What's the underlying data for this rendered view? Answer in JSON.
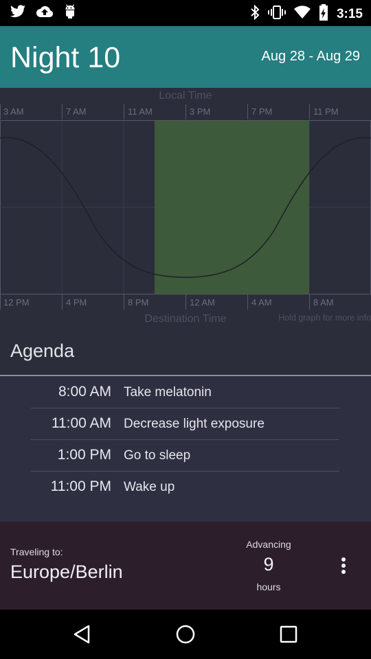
{
  "status_bar": {
    "time": "3:15",
    "left_icons": [
      "twitter-icon",
      "cloud-upload-icon",
      "android-icon"
    ],
    "right_icons": [
      "bluetooth-icon",
      "vibrate-icon",
      "wifi-icon",
      "battery-charging-icon"
    ]
  },
  "header": {
    "title": "Night 10",
    "date_range": "Aug 28 - Aug 29",
    "color": "#257e80"
  },
  "graph": {
    "top_axis_title": "Local Time",
    "top_ticks": [
      "3 AM",
      "7 AM",
      "11 AM",
      "3 PM",
      "7 PM",
      "11 PM"
    ],
    "bottom_ticks": [
      "12 PM",
      "4 PM",
      "8 PM",
      "12 AM",
      "4 AM",
      "8 AM"
    ],
    "bottom_axis_title": "Destination Time",
    "hint": "Hold graph for more info",
    "sleep_window_color": "#3d5a3a"
  },
  "agenda": {
    "title": "Agenda",
    "items": [
      {
        "time": "8:00 AM",
        "task": "Take melatonin"
      },
      {
        "time": "11:00 AM",
        "task": "Decrease light exposure"
      },
      {
        "time": "1:00 PM",
        "task": "Go to sleep"
      },
      {
        "time": "11:00 PM",
        "task": "Wake up"
      }
    ]
  },
  "footer": {
    "traveling_label": "Traveling to:",
    "destination": "Europe/Berlin",
    "advancing_label": "Advancing",
    "advancing_value": "9",
    "advancing_unit": "hours"
  },
  "nav_bar": {
    "buttons": [
      "back-icon",
      "home-icon",
      "recents-icon"
    ]
  }
}
